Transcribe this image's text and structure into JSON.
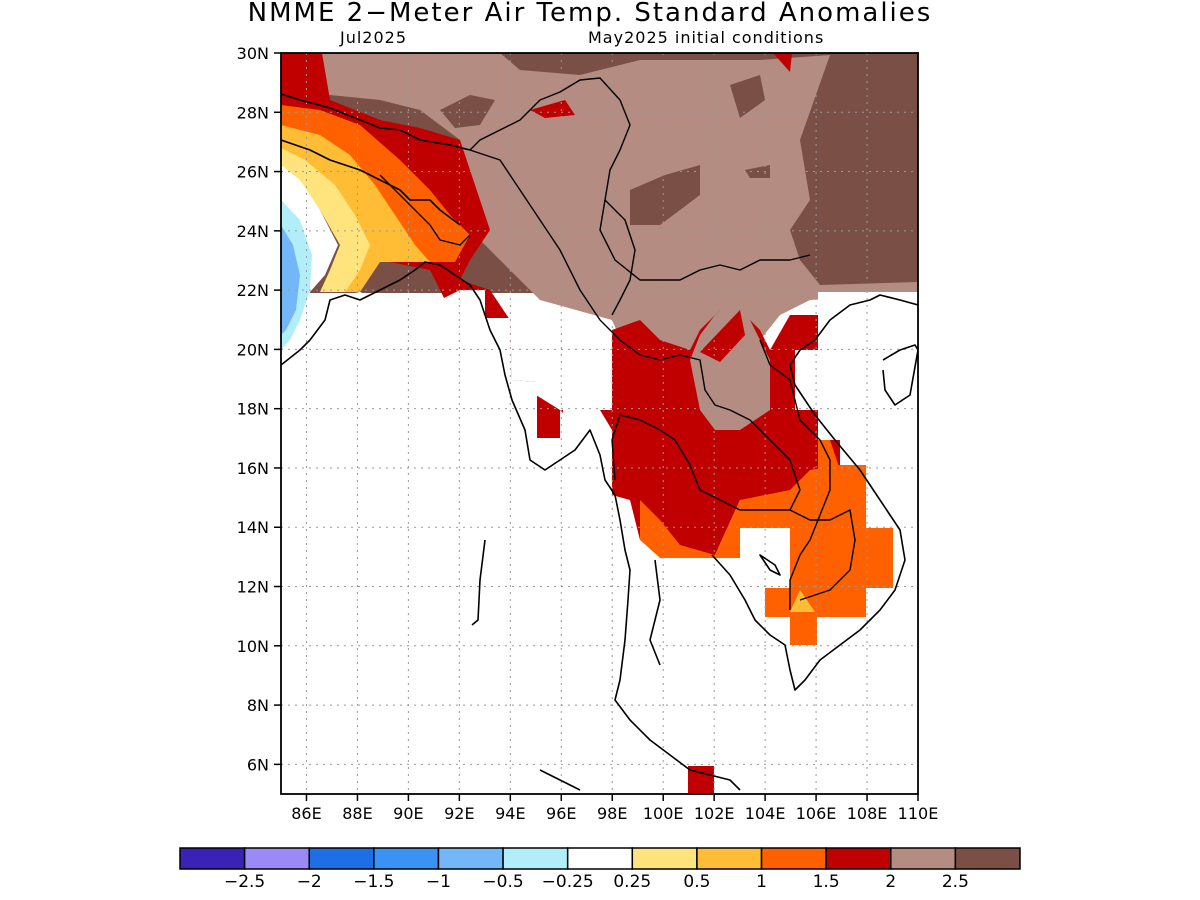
{
  "title": "NMME 2−Meter Air Temp. Standard Anomalies",
  "subtitle_left": "Jul2025",
  "subtitle_right": "May2025 initial conditions",
  "lat_labels": [
    "30N",
    "28N",
    "26N",
    "24N",
    "22N",
    "20N",
    "18N",
    "16N",
    "14N",
    "12N",
    "10N",
    "8N",
    "6N"
  ],
  "lon_labels": [
    "86E",
    "88E",
    "90E",
    "92E",
    "94E",
    "96E",
    "98E",
    "100E",
    "102E",
    "104E",
    "106E",
    "108E",
    "110E"
  ],
  "colorbar": {
    "colors": [
      "#3b22b6",
      "#9b8af6",
      "#1e6ee5",
      "#3b92f5",
      "#74b7f9",
      "#b2eef9",
      "#ffffff",
      "#ffe37d",
      "#ffbd36",
      "#ff6100",
      "#c00000",
      "#b48c82",
      "#7a4f45"
    ],
    "labels": [
      "−2.5",
      "−2",
      "−1.5",
      "−1",
      "−0.5",
      "−0.25",
      "0.25",
      "0.5",
      "1",
      "1.5",
      "2",
      "2.5"
    ]
  },
  "legend_colors": {
    "cat_0_5": "#ffe37d",
    "cat_1": "#ffbd36",
    "cat_1_5": "#ff6100",
    "cat_2": "#c00000",
    "cat_2_5": "#b48c82",
    "cat_gt_2_5": "#7a4f45",
    "cat_m0_5": "#b2eef9",
    "cat_m1": "#74b7f9"
  }
}
